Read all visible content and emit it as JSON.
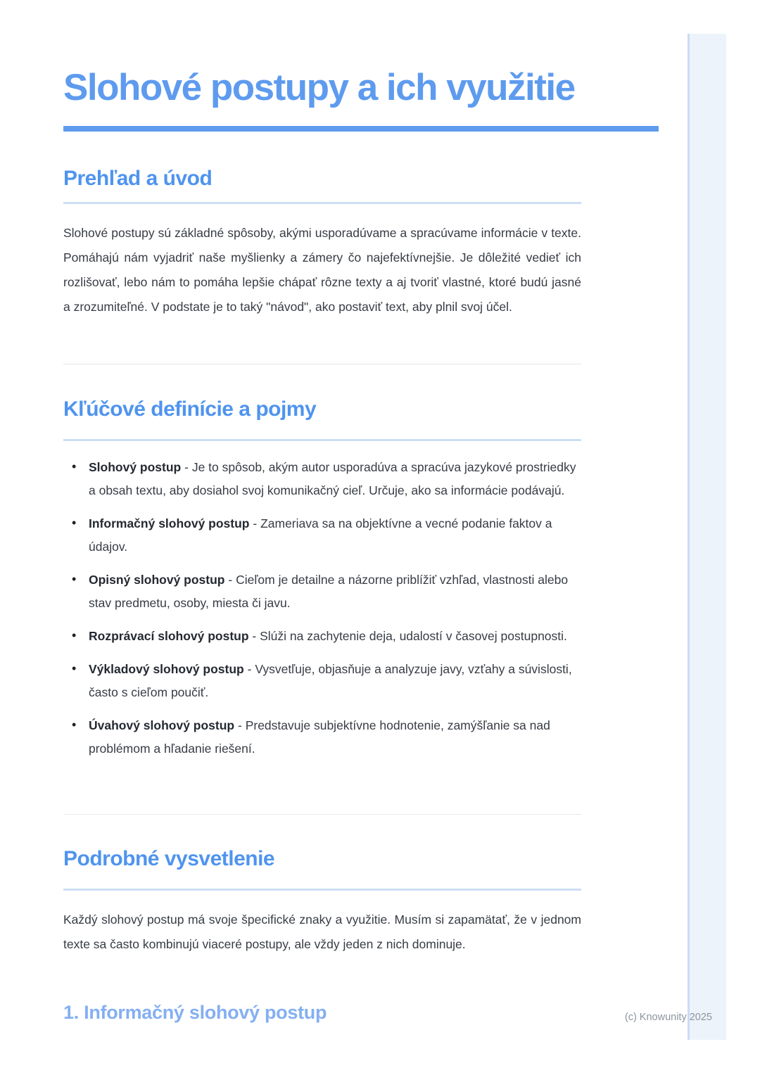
{
  "doc": {
    "title": "Slohové postupy a ich využitie"
  },
  "overview": {
    "heading": "Prehľad a úvod",
    "body": "Slohové postupy sú základné spôsoby, akými usporadúvame a spracúvame informácie v texte. Pomáhajú nám vyjadriť naše myšlienky a zámery čo najefektívnejšie. Je dôležité vedieť ich rozlišovať, lebo nám to pomáha lepšie chápať rôzne texty a aj tvoriť vlastné, ktoré budú jasné a zrozumiteľné. V podstate je to taký \"návod\", ako postaviť text, aby plnil svoj účel."
  },
  "definitions": {
    "heading": "Kľúčové definície a pojmy",
    "items": [
      {
        "term": "Slohový postup",
        "desc": "- Je to spôsob, akým autor usporadúva a spracúva jazykové prostriedky a obsah textu, aby dosiahol svoj komunikačný cieľ. Určuje, ako sa informácie podávajú."
      },
      {
        "term": "Informačný slohový postup",
        "desc": "- Zameriava sa na objektívne a vecné podanie faktov a údajov."
      },
      {
        "term": "Opisný slohový postup",
        "desc": "- Cieľom je detailne a názorne priblížiť vzhľad, vlastnosti alebo stav predmetu, osoby, miesta či javu."
      },
      {
        "term": "Rozprávací slohový postup",
        "desc": "- Slúži na zachytenie deja, udalostí v časovej postupnosti."
      },
      {
        "term": "Výkladový slohový postup",
        "desc": "- Vysvetľuje, objasňuje a analyzuje javy, vzťahy a súvislosti, často s cieľom poučiť."
      },
      {
        "term": "Úvahový slohový postup",
        "desc": "- Predstavuje subjektívne hodnotenie, zamýšľanie sa nad problémom a hľadanie riešení."
      }
    ]
  },
  "details": {
    "heading": "Podrobné vysvetlenie",
    "body": "Každý slohový postup má svoje špecifické znaky a využitie. Musím si zapamätať, že v jednom texte sa často kombinujú viaceré postupy, ale vždy jeden z nich dominuje.",
    "subheading": "1. Informačný slohový postup"
  },
  "footer": {
    "copyright": "(c) Knowunity 2025"
  },
  "icons": {
    "bullet_glyph": "•"
  },
  "colors": {
    "accent_blue": "#5e9bef",
    "heading_blue": "#4f94ee",
    "subheading_blue": "#84aff2",
    "heading_underline": "#cddef5",
    "divider_gray": "#e8e8e8",
    "body_text": "#373c44",
    "footer_text": "#8d949e",
    "strip_fill": "#edf3fb",
    "strip_border": "#ccdcf2"
  }
}
